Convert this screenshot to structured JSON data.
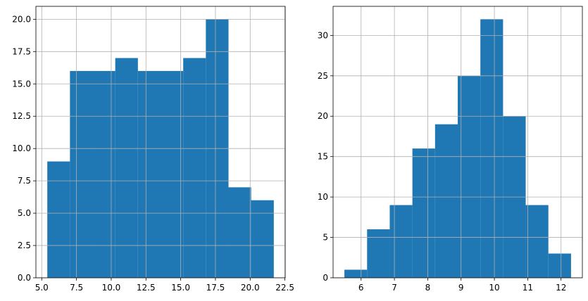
{
  "chart_data": [
    {
      "type": "bar",
      "subtype": "histogram",
      "grid": true,
      "bar_color": "#1f77b4",
      "bins": [
        {
          "x0": 5.4,
          "x1": 7.03,
          "count": 9
        },
        {
          "x0": 7.03,
          "x1": 8.66,
          "count": 16
        },
        {
          "x0": 8.66,
          "x1": 10.29,
          "count": 16
        },
        {
          "x0": 10.29,
          "x1": 11.92,
          "count": 17
        },
        {
          "x0": 11.92,
          "x1": 13.55,
          "count": 16
        },
        {
          "x0": 13.55,
          "x1": 15.18,
          "count": 16
        },
        {
          "x0": 15.18,
          "x1": 16.81,
          "count": 17
        },
        {
          "x0": 16.81,
          "x1": 18.44,
          "count": 20
        },
        {
          "x0": 18.44,
          "x1": 20.07,
          "count": 7
        },
        {
          "x0": 20.07,
          "x1": 21.7,
          "count": 6
        }
      ],
      "xlim": [
        4.58,
        22.52
      ],
      "ylim": [
        0,
        21
      ],
      "xticks": [
        5.0,
        7.5,
        10.0,
        12.5,
        15.0,
        17.5,
        20.0,
        22.5
      ],
      "xtick_labels": [
        "5.0",
        "7.5",
        "10.0",
        "12.5",
        "15.0",
        "17.5",
        "20.0",
        "22.5"
      ],
      "yticks": [
        0,
        2.5,
        5,
        7.5,
        10,
        12.5,
        15,
        17.5,
        20
      ],
      "ytick_labels": [
        "0.0",
        "2.5",
        "5.0",
        "7.5",
        "10.0",
        "12.5",
        "15.0",
        "17.5",
        "20.0"
      ]
    },
    {
      "type": "bar",
      "subtype": "histogram",
      "grid": true,
      "bar_color": "#1f77b4",
      "bins": [
        {
          "x0": 5.5,
          "x1": 6.18,
          "count": 1
        },
        {
          "x0": 6.18,
          "x1": 6.86,
          "count": 6
        },
        {
          "x0": 6.86,
          "x1": 7.54,
          "count": 9
        },
        {
          "x0": 7.54,
          "x1": 8.22,
          "count": 16
        },
        {
          "x0": 8.22,
          "x1": 8.9,
          "count": 19
        },
        {
          "x0": 8.9,
          "x1": 9.58,
          "count": 25
        },
        {
          "x0": 9.58,
          "x1": 10.26,
          "count": 32
        },
        {
          "x0": 10.26,
          "x1": 10.94,
          "count": 20
        },
        {
          "x0": 10.94,
          "x1": 11.62,
          "count": 9
        },
        {
          "x0": 11.62,
          "x1": 12.3,
          "count": 3
        }
      ],
      "xlim": [
        5.16,
        12.64
      ],
      "ylim": [
        0,
        33.6
      ],
      "xticks": [
        6,
        7,
        8,
        9,
        10,
        11,
        12
      ],
      "xtick_labels": [
        "6",
        "7",
        "8",
        "9",
        "10",
        "11",
        "12"
      ],
      "yticks": [
        0,
        5,
        10,
        15,
        20,
        25,
        30
      ],
      "ytick_labels": [
        "0",
        "5",
        "10",
        "15",
        "20",
        "25",
        "30"
      ]
    }
  ]
}
